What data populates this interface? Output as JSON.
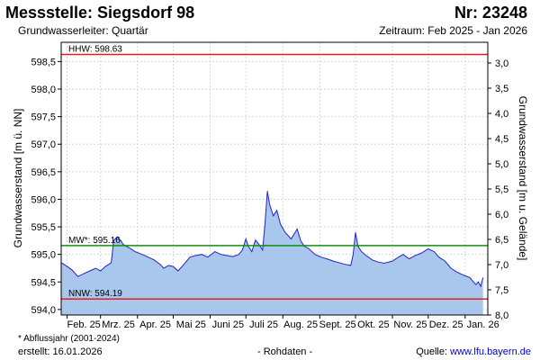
{
  "header": {
    "title": "Messstelle: Siegsdorf 98",
    "station_no": "Nr: 23248",
    "aquifer": "Grundwasserleiter: Quartär",
    "period": "Zeitraum: Feb 2025 - Jan 2026"
  },
  "footer": {
    "footnote": "* Abflussjahr (2001-2024)",
    "created": "erstellt:  16.01.2026",
    "raw": "- Rohdaten -",
    "source_prefix": "Quelle: ",
    "source_link": "www.lfu.bayern.de"
  },
  "colors": {
    "area_fill": "#a9c6ec",
    "line": "#2323c8",
    "hhw": "#e02020",
    "mw": "#109010",
    "nnw": "#e02020",
    "grid": "#d6d6d6"
  },
  "chart_data": {
    "type": "area",
    "xlabel": "",
    "ylabel": "Grundwasserstand [m ü. NN]",
    "y2label": "Grundwasserstand [m u. Gelände]",
    "ylim": [
      593.9,
      598.85
    ],
    "y2_ticks": [
      "3,0",
      "3,5",
      "4,0",
      "4,5",
      "5,0",
      "5,5",
      "6,0",
      "6,5",
      "7,0",
      "7,5",
      "8,0"
    ],
    "y_ticks": [
      "594,0",
      "594,5",
      "595,0",
      "595,5",
      "596,0",
      "596,5",
      "597,0",
      "597,5",
      "598,0",
      "598,5"
    ],
    "x_ticks": [
      "Feb. 25",
      "Mrz. 25",
      "Apr. 25",
      "Mai 25",
      "Juni 25",
      "Juli 25",
      "Aug. 25",
      "Sept. 25",
      "Okt. 25",
      "Nov. 25",
      "Dez. 25",
      "Jan. 26"
    ],
    "x_range": [
      "2025-01-27",
      "2026-01-20"
    ],
    "grid": true,
    "reference_lines": [
      {
        "label": "HHW: 598.63",
        "value": 598.63
      },
      {
        "label": "MW*: 595.16",
        "value": 595.16
      },
      {
        "label": "NNW: 594.19",
        "value": 594.19
      }
    ],
    "series": [
      {
        "x": [
          "2025-01-27",
          "2025-02-01",
          "2025-02-05",
          "2025-02-10",
          "2025-02-15",
          "2025-02-20",
          "2025-02-25",
          "2025-03-01",
          "2025-03-05",
          "2025-03-08",
          "2025-03-10",
          "2025-03-12",
          "2025-03-15",
          "2025-03-18",
          "2025-03-20",
          "2025-03-25",
          "2025-03-30",
          "2025-04-05",
          "2025-04-10",
          "2025-04-15",
          "2025-04-20",
          "2025-04-23",
          "2025-04-27",
          "2025-05-01",
          "2025-05-05",
          "2025-05-10",
          "2025-05-15",
          "2025-05-20",
          "2025-05-25",
          "2025-05-30",
          "2025-06-05",
          "2025-06-10",
          "2025-06-15",
          "2025-06-20",
          "2025-06-25",
          "2025-06-28",
          "2025-07-01",
          "2025-07-03",
          "2025-07-06",
          "2025-07-09",
          "2025-07-12",
          "2025-07-15",
          "2025-07-17",
          "2025-07-19",
          "2025-07-21",
          "2025-07-24",
          "2025-07-27",
          "2025-07-30",
          "2025-08-03",
          "2025-08-08",
          "2025-08-13",
          "2025-08-16",
          "2025-08-19",
          "2025-08-23",
          "2025-08-28",
          "2025-09-02",
          "2025-09-07",
          "2025-09-12",
          "2025-09-17",
          "2025-09-22",
          "2025-09-27",
          "2025-09-29",
          "2025-10-01",
          "2025-10-03",
          "2025-10-06",
          "2025-10-10",
          "2025-10-15",
          "2025-10-20",
          "2025-10-25",
          "2025-11-01",
          "2025-11-06",
          "2025-11-10",
          "2025-11-15",
          "2025-11-20",
          "2025-11-25",
          "2025-12-01",
          "2025-12-06",
          "2025-12-10",
          "2025-12-15",
          "2025-12-20",
          "2025-12-25",
          "2025-12-31",
          "2026-01-05",
          "2026-01-08",
          "2026-01-10",
          "2026-01-12",
          "2026-01-14",
          "2026-01-16"
        ],
        "values": [
          594.85,
          594.78,
          594.72,
          594.6,
          594.65,
          594.7,
          594.75,
          594.7,
          594.78,
          594.82,
          594.85,
          595.25,
          595.32,
          595.25,
          595.18,
          595.12,
          595.05,
          595.0,
          594.95,
          594.9,
          594.82,
          594.75,
          594.8,
          594.78,
          594.7,
          594.82,
          594.95,
          594.98,
          595.0,
          594.95,
          595.05,
          595.0,
          594.98,
          594.96,
          595.0,
          595.08,
          595.28,
          595.15,
          595.05,
          595.26,
          595.18,
          595.08,
          595.55,
          596.15,
          595.9,
          595.7,
          595.8,
          595.55,
          595.4,
          595.28,
          595.46,
          595.25,
          595.15,
          595.1,
          595.0,
          594.95,
          594.92,
          594.88,
          594.85,
          594.82,
          594.8,
          595.0,
          595.4,
          595.15,
          595.05,
          594.98,
          594.9,
          594.86,
          594.84,
          594.88,
          594.95,
          595.0,
          594.92,
          594.98,
          595.02,
          595.1,
          595.05,
          594.95,
          594.88,
          594.75,
          594.68,
          594.62,
          594.58,
          594.5,
          594.45,
          594.5,
          594.42,
          594.58
        ]
      }
    ]
  }
}
